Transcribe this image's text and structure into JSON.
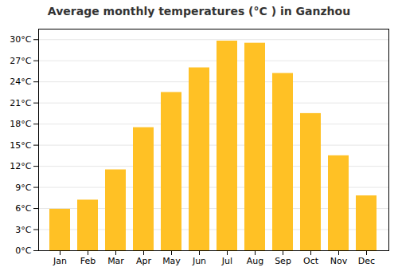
{
  "chart_data": {
    "type": "bar",
    "title": "Average monthly temperatures (°C ) in Ganzhou",
    "categories": [
      "Jan",
      "Feb",
      "Mar",
      "Apr",
      "May",
      "Jun",
      "Jul",
      "Aug",
      "Sep",
      "Oct",
      "Nov",
      "Dec"
    ],
    "values": [
      5.9,
      7.2,
      11.5,
      17.5,
      22.5,
      26.0,
      29.8,
      29.5,
      25.2,
      19.5,
      13.5,
      7.8
    ],
    "color": "#FFC125",
    "ylim": [
      0,
      31.5
    ],
    "yticks": [
      {
        "value": 0,
        "label": "0°C"
      },
      {
        "value": 3,
        "label": "3°C"
      },
      {
        "value": 6,
        "label": "6°C"
      },
      {
        "value": 9,
        "label": "9°C"
      },
      {
        "value": 12,
        "label": "12°C"
      },
      {
        "value": 15,
        "label": "15°C"
      },
      {
        "value": 18,
        "label": "18°C"
      },
      {
        "value": 21,
        "label": "21°C"
      },
      {
        "value": 24,
        "label": "24°C"
      },
      {
        "value": 27,
        "label": "27°C"
      },
      {
        "value": 30,
        "label": "30°C"
      }
    ],
    "grid": true
  }
}
